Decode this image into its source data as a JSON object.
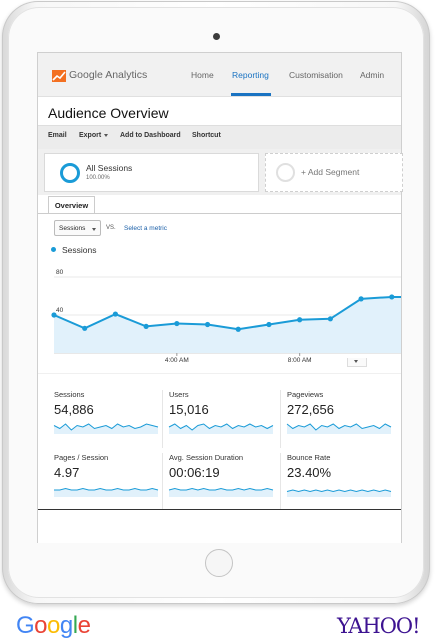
{
  "nav": {
    "app_name": "Google Analytics",
    "items": [
      {
        "label": "Home",
        "active": false
      },
      {
        "label": "Reporting",
        "active": true
      },
      {
        "label": "Customisation",
        "active": false
      },
      {
        "label": "Admin",
        "active": false
      }
    ]
  },
  "page": {
    "title": "Audience Overview"
  },
  "toolbar": {
    "email": "Email",
    "export": "Export",
    "add_to_dashboard": "Add to Dashboard",
    "shortcut": "Shortcut"
  },
  "segments": {
    "active": {
      "name": "All Sessions",
      "percent": "100.00%"
    },
    "add_label": "+ Add Segment"
  },
  "tabs": [
    {
      "label": "Overview",
      "active": true
    }
  ],
  "chart_controls": {
    "metric_select": "Sessions",
    "vs": "VS.",
    "select_metric": "Select a metric"
  },
  "chart_data": {
    "type": "area",
    "series": [
      {
        "name": "Sessions",
        "values": [
          40,
          26,
          41,
          28,
          31,
          30,
          25,
          30,
          35,
          36,
          57,
          59
        ],
        "color": "#1a9bd7"
      }
    ],
    "y_tick_labels": [
      "80",
      "40"
    ],
    "x_tick_labels": [
      "4:00 AM",
      "8:00 AM"
    ],
    "ylim": [
      0,
      100
    ],
    "grid": true
  },
  "metrics": [
    {
      "label": "Sessions",
      "value": "54,886",
      "spark": [
        5,
        3,
        6,
        2,
        5,
        4,
        6,
        3,
        4,
        5,
        3,
        6,
        4,
        5,
        3,
        4,
        6,
        5,
        4
      ]
    },
    {
      "label": "Users",
      "value": "15,016",
      "spark": [
        4,
        6,
        3,
        5,
        2,
        5,
        6,
        3,
        5,
        4,
        6,
        3,
        5,
        4,
        6,
        4,
        5,
        3,
        5
      ]
    },
    {
      "label": "Pageviews",
      "value": "272,656",
      "spark": [
        6,
        3,
        5,
        4,
        6,
        2,
        5,
        4,
        6,
        3,
        5,
        4,
        6,
        3,
        4,
        5,
        3,
        6,
        4
      ]
    },
    {
      "label": "Pages / Session",
      "value": "4.97",
      "spark": [
        4,
        4,
        5,
        4,
        4,
        5,
        4,
        4,
        5,
        4,
        4,
        5,
        4,
        4,
        5,
        4,
        4,
        5,
        4
      ]
    },
    {
      "label": "Avg. Session Duration",
      "value": "00:06:19",
      "spark": [
        4,
        5,
        4,
        4,
        5,
        4,
        5,
        4,
        4,
        5,
        4,
        4,
        5,
        4,
        5,
        4,
        4,
        5,
        4
      ]
    },
    {
      "label": "Bounce Rate",
      "value": "23.40%",
      "spark": [
        3,
        4,
        3,
        4,
        3,
        4,
        3,
        4,
        3,
        4,
        3,
        4,
        3,
        4,
        3,
        4,
        3,
        4,
        3
      ]
    }
  ],
  "brands": {
    "google": "Google",
    "yahoo": "YAHOO!"
  }
}
